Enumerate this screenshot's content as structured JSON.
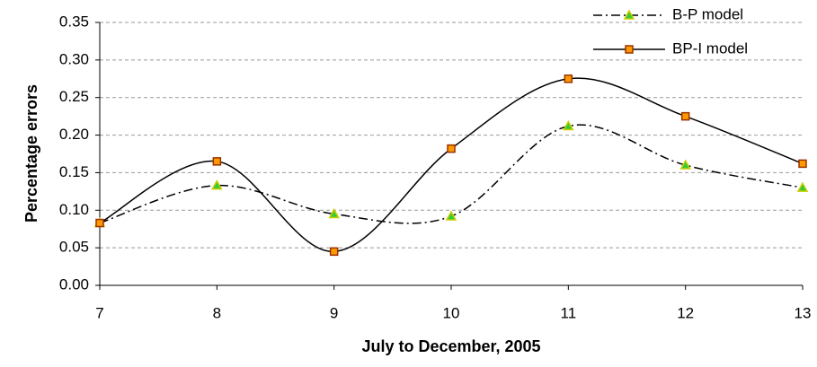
{
  "chart_data": {
    "type": "line",
    "x_label": "July to December, 2005",
    "y_label": "Percentage errors",
    "x": [
      7,
      8,
      9,
      10,
      11,
      12,
      13
    ],
    "series": [
      {
        "name": "B-P model",
        "color": "#000000",
        "line_style": "dashdot",
        "marker": "triangle",
        "marker_color": "#33cc33",
        "marker_edge": "#cccc00",
        "values": [
          0.083,
          0.133,
          0.095,
          0.092,
          0.212,
          0.16,
          0.13
        ]
      },
      {
        "name": "BP-I model",
        "color": "#000000",
        "line_style": "solid",
        "marker": "square",
        "marker_color": "#ff9900",
        "marker_edge": "#993300",
        "values": [
          0.083,
          0.165,
          0.045,
          0.182,
          0.275,
          0.225,
          0.162
        ]
      }
    ],
    "xlim": [
      7,
      13
    ],
    "xticks": [
      7,
      8,
      9,
      10,
      11,
      12,
      13
    ],
    "ylim": [
      0,
      0.35
    ],
    "yticks": [
      {
        "value": 0,
        "label": "0.00"
      },
      {
        "value": 0.05,
        "label": "0.05"
      },
      {
        "value": 0.1,
        "label": "0.10"
      },
      {
        "value": 0.15,
        "label": "0.15"
      },
      {
        "value": 0.2,
        "label": "0.20"
      },
      {
        "value": 0.25,
        "label": "0.25"
      },
      {
        "value": 0.3,
        "label": "0.30"
      },
      {
        "value": 0.35,
        "label": "0.35"
      }
    ],
    "grid": true,
    "smooth": true,
    "legend": "top-right"
  }
}
